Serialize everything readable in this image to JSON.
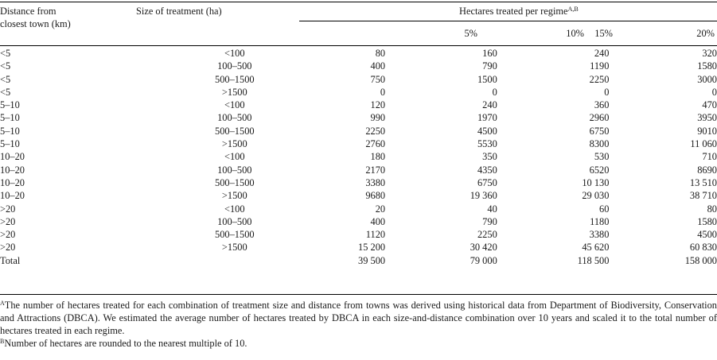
{
  "header": {
    "distance": "Distance from closest town (km)",
    "distance_line1": "Distance from",
    "distance_line2": "closest town (km)",
    "size": "Size of treatment (ha)",
    "group": "Hectares treated per regime",
    "group_sup": "A,B",
    "regimes": [
      "5%",
      "10%",
      "15%",
      "20%"
    ]
  },
  "rows": [
    {
      "distance": "<5",
      "size": "<100",
      "v": [
        "80",
        "160",
        "240",
        "320"
      ]
    },
    {
      "distance": "<5",
      "size": "100–500",
      "v": [
        "400",
        "790",
        "1190",
        "1580"
      ]
    },
    {
      "distance": "<5",
      "size": "500–1500",
      "v": [
        "750",
        "1500",
        "2250",
        "3000"
      ]
    },
    {
      "distance": "<5",
      "size": ">1500",
      "v": [
        "0",
        "0",
        "0",
        "0"
      ]
    },
    {
      "distance": "5–10",
      "size": "<100",
      "v": [
        "120",
        "240",
        "360",
        "470"
      ]
    },
    {
      "distance": "5–10",
      "size": "100–500",
      "v": [
        "990",
        "1970",
        "2960",
        "3950"
      ]
    },
    {
      "distance": "5–10",
      "size": "500–1500",
      "v": [
        "2250",
        "4500",
        "6750",
        "9010"
      ]
    },
    {
      "distance": "5–10",
      "size": ">1500",
      "v": [
        "2760",
        "5530",
        "8300",
        "11 060"
      ]
    },
    {
      "distance": "10–20",
      "size": "<100",
      "v": [
        "180",
        "350",
        "530",
        "710"
      ]
    },
    {
      "distance": "10–20",
      "size": "100–500",
      "v": [
        "2170",
        "4350",
        "6520",
        "8690"
      ]
    },
    {
      "distance": "10–20",
      "size": "500–1500",
      "v": [
        "3380",
        "6750",
        "10 130",
        "13 510"
      ]
    },
    {
      "distance": "10–20",
      "size": ">1500",
      "v": [
        "9680",
        "19 360",
        "29 030",
        "38 710"
      ]
    },
    {
      "distance": ">20",
      "size": "<100",
      "v": [
        "20",
        "40",
        "60",
        "80"
      ]
    },
    {
      "distance": ">20",
      "size": "100–500",
      "v": [
        "400",
        "790",
        "1180",
        "1580"
      ]
    },
    {
      "distance": ">20",
      "size": "500–1500",
      "v": [
        "1120",
        "2250",
        "3380",
        "4500"
      ]
    },
    {
      "distance": ">20",
      "size": ">1500",
      "v": [
        "15 200",
        "30 420",
        "45 620",
        "60 830"
      ]
    }
  ],
  "total": {
    "label": "Total",
    "v": [
      "39 500",
      "79 000",
      "118 500",
      "158 000"
    ]
  },
  "footnotes": {
    "a_mark": "A",
    "a_text": "The number of hectares treated for each combination of treatment size and distance from towns was derived using historical data from Department of Biodiversity, Conservation and Attractions (DBCA). We estimated the average number of hectares treated by DBCA in each size-and-distance combination over 10 years and scaled it to the total number of hectares treated in each regime.",
    "b_mark": "B",
    "b_text": "Number of hectares are rounded to the nearest multiple of 10."
  }
}
